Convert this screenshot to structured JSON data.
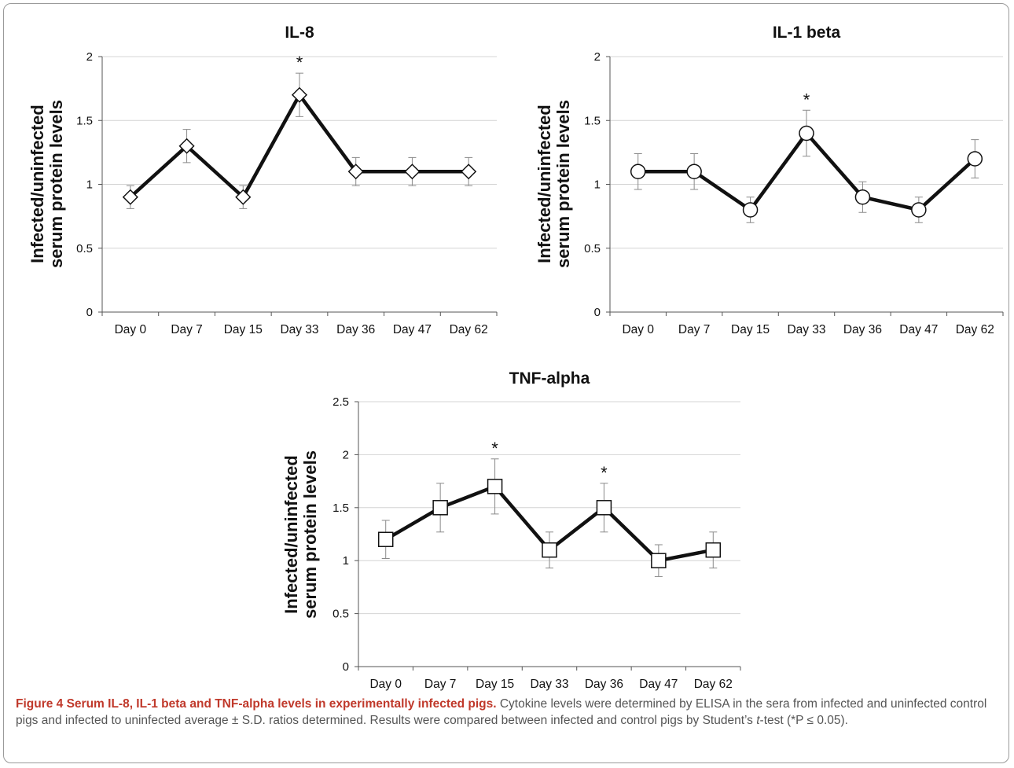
{
  "charts": [
    {
      "type": "line",
      "title": "IL-8",
      "ylabel": "Infected/uninfected serum protein levels",
      "ylabel_lines": [
        "Infected/uninfected",
        "serum protein levels"
      ],
      "categories": [
        "Day 0",
        "Day 7",
        "Day 15",
        "Day 33",
        "Day 36",
        "Day 47",
        "Day 62"
      ],
      "values": [
        0.9,
        1.3,
        0.9,
        1.7,
        1.1,
        1.1,
        1.1
      ],
      "errors": [
        0.09,
        0.13,
        0.09,
        0.17,
        0.11,
        0.11,
        0.11
      ],
      "significant": [
        false,
        false,
        false,
        true,
        false,
        false,
        false
      ],
      "significance_marker": "*",
      "marker": "diamond",
      "ylim": [
        0,
        2
      ],
      "yticks": [
        "0",
        "0.5",
        "1",
        "1.5",
        "2"
      ],
      "ytick_values": [
        0,
        0.5,
        1,
        1.5,
        2
      ],
      "grid": true
    },
    {
      "type": "line",
      "title": "IL-1 beta",
      "ylabel": "Infected/uninfected serum protein levels",
      "ylabel_lines": [
        "Infected/uninfected",
        "serum protein levels"
      ],
      "categories": [
        "Day 0",
        "Day 7",
        "Day 15",
        "Day 33",
        "Day 36",
        "Day 47",
        "Day 62"
      ],
      "values": [
        1.1,
        1.1,
        0.8,
        1.4,
        0.9,
        0.8,
        1.2
      ],
      "errors": [
        0.14,
        0.14,
        0.1,
        0.18,
        0.12,
        0.1,
        0.15
      ],
      "significant": [
        false,
        false,
        false,
        true,
        false,
        false,
        false
      ],
      "significance_marker": "*",
      "marker": "circle",
      "ylim": [
        0,
        2
      ],
      "yticks": [
        "0",
        "0.5",
        "1",
        "1.5",
        "2"
      ],
      "ytick_values": [
        0,
        0.5,
        1,
        1.5,
        2
      ],
      "grid": true
    },
    {
      "type": "line",
      "title": "TNF-alpha",
      "ylabel": "Infected/uninfected serum protein levels",
      "ylabel_lines": [
        "Infected/uninfected",
        "serum protein levels"
      ],
      "categories": [
        "Day 0",
        "Day 7",
        "Day 15",
        "Day 33",
        "Day 36",
        "Day 47",
        "Day 62"
      ],
      "values": [
        1.2,
        1.5,
        1.7,
        1.1,
        1.5,
        1.0,
        1.1
      ],
      "errors": [
        0.18,
        0.23,
        0.26,
        0.17,
        0.23,
        0.15,
        0.17
      ],
      "significant": [
        false,
        false,
        true,
        false,
        true,
        false,
        false
      ],
      "significance_marker": "*",
      "marker": "square",
      "ylim": [
        0,
        2.5
      ],
      "yticks": [
        "0",
        "0.5",
        "1",
        "1.5",
        "2",
        "2.5"
      ],
      "ytick_values": [
        0,
        0.5,
        1,
        1.5,
        2,
        2.5
      ],
      "grid": true
    }
  ],
  "caption": {
    "label": "Figure 4 Serum IL-8, IL-1 beta and TNF-alpha levels in experimentally infected pigs.",
    "text_before_italic": " Cytokine levels were determined by ELISA in the sera from infected and uninfected control pigs and infected to uninfected average ± S.D. ratios determined. Results were compared between infected and control pigs by Student’s ",
    "italic": "t",
    "text_after_italic": "-test (*P ≤ 0.05)."
  },
  "colors": {
    "line": "#111111",
    "grid": "#d4d4d4",
    "error": "#8a8a8a",
    "caption_label": "#c0392b",
    "caption_text": "#555555"
  }
}
